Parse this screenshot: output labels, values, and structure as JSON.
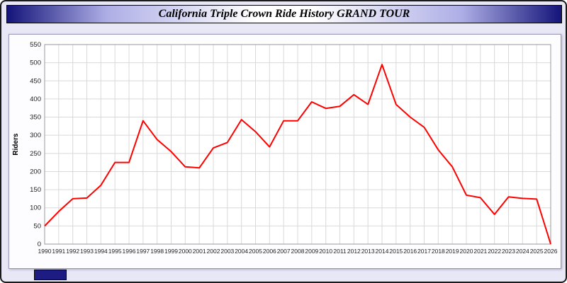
{
  "header": {
    "title": "California Triple Crown Ride History GRAND TOUR"
  },
  "chart_data": {
    "type": "line",
    "title": "California Triple Crown Ride History GRAND TOUR",
    "xlabel": "",
    "ylabel": "Riders",
    "ylim": [
      0,
      550
    ],
    "ytick_step": 50,
    "grid": true,
    "legend": "none",
    "line_color": "#ff0000",
    "x": [
      1990,
      1991,
      1992,
      1993,
      1994,
      1995,
      1996,
      1997,
      1998,
      1999,
      2000,
      2001,
      2002,
      2003,
      2004,
      2005,
      2006,
      2007,
      2008,
      2009,
      2010,
      2011,
      2012,
      2013,
      2014,
      2015,
      2016,
      2017,
      2018,
      2019,
      2020,
      2021,
      2022,
      2023,
      2024,
      2025,
      2026
    ],
    "values": [
      50,
      90,
      125,
      127,
      162,
      225,
      225,
      340,
      288,
      255,
      213,
      210,
      265,
      280,
      343,
      310,
      268,
      340,
      340,
      392,
      374,
      380,
      412,
      385,
      495,
      385,
      350,
      322,
      260,
      213,
      135,
      128,
      82,
      130,
      126,
      124,
      0
    ]
  },
  "colors": {
    "page_bg": "#e7e7f6",
    "titlebar_edge": "#14147a",
    "plot_bg": "#ffffff",
    "grid": "#d9d9d9",
    "plot_border": "#999999",
    "line": "#ff0000",
    "axis_text": "#222222",
    "badge": "#1c1c82"
  }
}
